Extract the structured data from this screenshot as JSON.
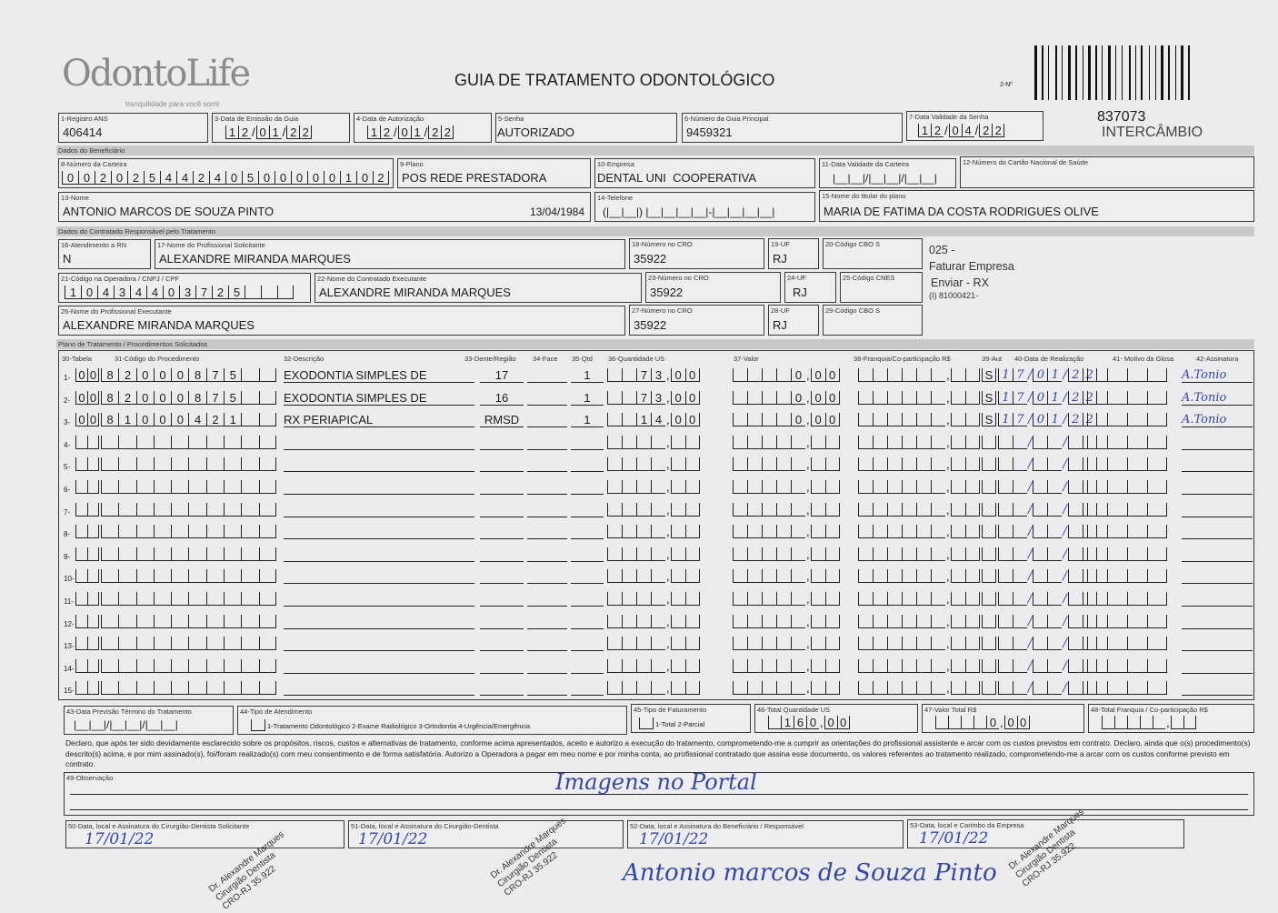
{
  "header": {
    "logo": "OdontoLife",
    "tagline": "tranquilidade para você sorrir",
    "title": "GUIA DE TRATAMENTO ODONTOLÓGICO",
    "guide_number_label": "2-Nº",
    "guide_number": "837073",
    "type": "INTERCÂMBIO"
  },
  "fields": {
    "f1": {
      "label": "1-Registro ANS",
      "value": "406414"
    },
    "f3": {
      "label": "3-Data de Emissão da Guia",
      "value": "12/01/22"
    },
    "f4": {
      "label": "4-Data de Autorização",
      "value": "12/01/22"
    },
    "f5": {
      "label": "5-Senha",
      "value": "AUTORIZADO"
    },
    "f6": {
      "label": "6-Número da Guia Principal",
      "value": "9459321"
    },
    "f7": {
      "label": "7-Data Validade da Senha",
      "value": "12/04/22"
    },
    "f8": {
      "label": "8-Número da Carteira",
      "value": "00202544240500000102"
    },
    "f9": {
      "label": "9-Plano",
      "value": "POS REDE PRESTADORA"
    },
    "f10": {
      "label": "10-Empresa",
      "value": "DENTAL UNI  COOPERATIVA"
    },
    "f11": {
      "label": "11-Data Validade da Carteira",
      "value": ""
    },
    "f12": {
      "label": "12-Número do Cartão Nacional de Saúde",
      "value": ""
    },
    "f13": {
      "label": "13-Nome",
      "value": "ANTONIO MARCOS DE SOUZA PINTO",
      "birth": "13/04/1984"
    },
    "f14": {
      "label": "14-Telefone",
      "value": ""
    },
    "f15": {
      "label": "15-Nome do titular do plano",
      "value": "MARIA DE FATIMA DA COSTA RODRIGUES OLIVE"
    },
    "f16": {
      "label": "16-Atendimento a RN",
      "value": "N"
    },
    "f17": {
      "label": "17-Nome do Profissional Solicitante",
      "value": "ALEXANDRE MIRANDA MARQUES"
    },
    "f18": {
      "label": "18-Número no CRO",
      "value": "35922"
    },
    "f19": {
      "label": "19-UF",
      "value": "RJ"
    },
    "f20": {
      "label": "20-Código CBO S",
      "value": ""
    },
    "f21": {
      "label": "21-Código na Operadora / CNPJ / CPF",
      "value": "10434403725"
    },
    "f22": {
      "label": "22-Nome do Contratado Executante",
      "value": "ALEXANDRE MIRANDA MARQUES"
    },
    "f23": {
      "label": "23-Número no CRO",
      "value": "35922"
    },
    "f24": {
      "label": "24-UF",
      "value": "RJ"
    },
    "f25": {
      "label": "25-Código CNES",
      "value": ""
    },
    "f26": {
      "label": "26-Nome do Profissional Executante",
      "value": "ALEXANDRE MIRANDA MARQUES"
    },
    "f27": {
      "label": "27-Número no CRO",
      "value": "35922"
    },
    "f28": {
      "label": "28-UF",
      "value": "RJ"
    },
    "f29": {
      "label": "29-Código CBO S",
      "value": ""
    }
  },
  "notes": {
    "line1": "025 -",
    "line2": "Faturar Empresa",
    "line3": "Enviar - RX",
    "line4": "(I) 81000421-"
  },
  "sections": {
    "beneficiary": "Dados do Beneficiário",
    "contracted": "Dados do Contratado Responsável pelo Tratamento",
    "plan": "Plano de Tratamento / Procedimentos Solicitados"
  },
  "table": {
    "headers": [
      "30-Tabela",
      "31-Código do Procedimento",
      "32-Descrição",
      "33-Dente/Região",
      "34-Face",
      "35-Qtd",
      "36-Quantidade US",
      "37-Valor",
      "38-Franquia/Co-participação R$",
      "39-Aut",
      "40-Data de Realização",
      "41- Motivo da Glosa",
      "42-Assinatura"
    ],
    "rows": [
      {
        "n": "1",
        "tabela": "00",
        "codigo": "82000875",
        "descricao": "EXODONTIA SIMPLES DE",
        "dente": "17",
        "face": "",
        "qtd": "1",
        "us": "73,00",
        "valor": "0,00",
        "franquia": "",
        "aut": "S",
        "data": "17/01/22",
        "glosa": "",
        "assinatura": "A.Tonio"
      },
      {
        "n": "2",
        "tabela": "00",
        "codigo": "82000875",
        "descricao": "EXODONTIA SIMPLES DE",
        "dente": "16",
        "face": "",
        "qtd": "1",
        "us": "73,00",
        "valor": "0,00",
        "franquia": "",
        "aut": "S",
        "data": "17/01/22",
        "glosa": "",
        "assinatura": "A.Tonio"
      },
      {
        "n": "3",
        "tabela": "00",
        "codigo": "81000421",
        "descricao": "RX PERIAPICAL",
        "dente": "RMSD",
        "face": "",
        "qtd": "1",
        "us": "14,00",
        "valor": "0,00",
        "franquia": "",
        "aut": "S",
        "data": "17/01/22",
        "glosa": "",
        "assinatura": "A.Tonio"
      },
      {
        "n": "4"
      },
      {
        "n": "5"
      },
      {
        "n": "6"
      },
      {
        "n": "7"
      },
      {
        "n": "8"
      },
      {
        "n": "9"
      },
      {
        "n": "10"
      },
      {
        "n": "11"
      },
      {
        "n": "12"
      },
      {
        "n": "13"
      },
      {
        "n": "14"
      },
      {
        "n": "15"
      }
    ]
  },
  "footer": {
    "f43": {
      "label": "43-Data Previsão Término do Tratamento"
    },
    "f44": {
      "label": "44-Tipo de Atendimento",
      "options": "1-Tratamento Odontológico  2-Exame Radiológico  3-Ortodontia  4-Urgência/Emergência"
    },
    "f45": {
      "label": "45-Tipo de Faturamento",
      "options": "1-Total  2-Parcial"
    },
    "f46": {
      "label": "46-Total Quantidade US",
      "value": "160,00"
    },
    "f47": {
      "label": "47-Valor Total R$",
      "value": "0,00"
    },
    "f48": {
      "label": "48-Total Franquia / Co-participação R$",
      "value": ""
    },
    "declaration": "Declaro, que após ter sido devidamente esclarecido sobre os propósitos, riscos, custos e alternativas de tratamento, conforme acima apresentados, aceito e autorizo a execução do tratamento, comprometendo-me a cumprir as orientações do profissional assistente e arcar com os custos previstos em contrato. Declaro, ainda que o(s) procedimento(s) descrito(s) acima, e por mim assinado(s), foi/foram realizado(s) com meu consentimento e de forma satisfatória. Autorizo a Operadora a pagar em meu nome e por minha conta, ao profissional contratado que assina esse documento, os valores referentes ao tratamento realizado, comprometendo-me a arcar com os custos conforme previsto em contrato.",
    "f49": {
      "label": "49-Observação",
      "value": "Imagens no Portal"
    },
    "f50": {
      "label": "50-Data, local e Assinatura do Cirurgião-Dentista Solicitante",
      "value": "17/01/22"
    },
    "f51": {
      "label": "51-Data, local e Assinatura do Cirurgião-Dentista",
      "value": "17/01/22"
    },
    "f52": {
      "label": "52-Data, local e Assinatura do Beneficiário / Responsável",
      "value": "17/01/22"
    },
    "f53": {
      "label": "53-Data, local e Carimbo da Empresa",
      "value": "17/01/22"
    },
    "beneficiary_signature": "Antonio marcos de Souza Pinto",
    "stamp": {
      "l1": "Dr. Alexandre Marques",
      "l2": "Cirurgião Dentista",
      "l3": "CRO-RJ 35.922"
    }
  }
}
